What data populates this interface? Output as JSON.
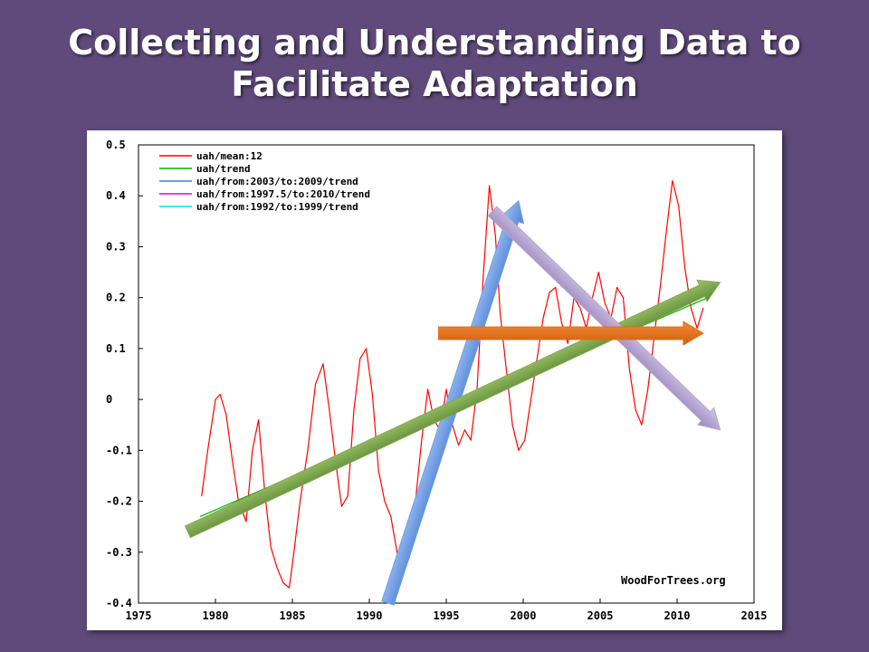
{
  "title": {
    "line1": "Collecting and Understanding Data to",
    "line2": "Facilitate Adaptation"
  },
  "chart_data": {
    "type": "line",
    "title": "",
    "xlabel": "",
    "ylabel": "",
    "xlim": [
      1975,
      2015
    ],
    "ylim": [
      -0.4,
      0.5
    ],
    "x_ticks": [
      "1975",
      "1980",
      "1985",
      "1990",
      "1995",
      "2000",
      "2005",
      "2010",
      "2015"
    ],
    "y_ticks": [
      "0.5",
      "0.4",
      "0.3",
      "0.2",
      "0.1",
      "0",
      "-0.1",
      "-0.2",
      "-0.3",
      "-0.4"
    ],
    "grid": false,
    "legend_position": "top-left",
    "watermark": "WoodForTrees.org",
    "series": [
      {
        "name": "uah/mean:12",
        "color": "#ff0000",
        "x": [
          1979.1,
          1979.5,
          1980.0,
          1980.3,
          1980.7,
          1981.1,
          1981.5,
          1982.0,
          1982.4,
          1982.8,
          1983.2,
          1983.6,
          1984.0,
          1984.4,
          1984.8,
          1985.1,
          1985.5,
          1986.0,
          1986.5,
          1987.0,
          1987.4,
          1987.8,
          1988.2,
          1988.6,
          1989.0,
          1989.4,
          1989.8,
          1990.2,
          1990.6,
          1991.0,
          1991.4,
          1991.8,
          1992.2,
          1992.6,
          1993.0,
          1993.4,
          1993.8,
          1994.2,
          1994.6,
          1995.0,
          1995.4,
          1995.8,
          1996.2,
          1996.6,
          1997.0,
          1997.4,
          1997.8,
          1998.2,
          1998.5,
          1998.9,
          1999.3,
          1999.7,
          2000.1,
          2000.5,
          2000.9,
          2001.3,
          2001.7,
          2002.1,
          2002.5,
          2002.9,
          2003.3,
          2003.7,
          2004.1,
          2004.5,
          2004.9,
          2005.3,
          2005.7,
          2006.1,
          2006.5,
          2006.9,
          2007.3,
          2007.7,
          2008.1,
          2008.5,
          2008.9,
          2009.3,
          2009.7,
          2010.1,
          2010.5,
          2010.9,
          2011.3,
          2011.7
        ],
        "y": [
          -0.19,
          -0.1,
          0.0,
          0.01,
          -0.03,
          -0.12,
          -0.2,
          -0.24,
          -0.1,
          -0.04,
          -0.18,
          -0.29,
          -0.33,
          -0.36,
          -0.37,
          -0.3,
          -0.2,
          -0.1,
          0.03,
          0.07,
          -0.02,
          -0.12,
          -0.21,
          -0.19,
          -0.02,
          0.08,
          0.1,
          0.01,
          -0.14,
          -0.2,
          -0.23,
          -0.3,
          -0.34,
          -0.31,
          -0.2,
          -0.08,
          0.02,
          -0.04,
          -0.06,
          0.02,
          -0.05,
          -0.09,
          -0.06,
          -0.08,
          0.02,
          0.24,
          0.42,
          0.32,
          0.17,
          0.06,
          -0.05,
          -0.1,
          -0.08,
          0.0,
          0.08,
          0.16,
          0.21,
          0.22,
          0.15,
          0.11,
          0.2,
          0.18,
          0.14,
          0.2,
          0.25,
          0.19,
          0.16,
          0.22,
          0.2,
          0.06,
          -0.02,
          -0.05,
          0.02,
          0.12,
          0.22,
          0.33,
          0.43,
          0.38,
          0.26,
          0.18,
          0.14,
          0.18
        ]
      },
      {
        "name": "uah/trend",
        "color": "#00b000",
        "x": [
          1979.0,
          2012.0
        ],
        "y": [
          -0.23,
          0.2
        ]
      },
      {
        "name": "uah/from:2003/to:2009/trend",
        "color": "#3a7ee0",
        "x": [],
        "y": []
      },
      {
        "name": "uah/from:1997.5/to:2010/trend",
        "color": "#e000e0",
        "x": [],
        "y": []
      },
      {
        "name": "uah/from:1992/to:1999/trend",
        "color": "#00e0e0",
        "x": [],
        "y": []
      }
    ]
  },
  "overlay_arrows": [
    {
      "name": "blue-arrow",
      "color": "#6e9be0",
      "from": [
        1991.2,
        -0.4
      ],
      "to": [
        1999.7,
        0.39
      ]
    },
    {
      "name": "green-arrow",
      "color": "#7fa84f",
      "from": [
        1978.2,
        -0.26
      ],
      "to": [
        2012.8,
        0.23
      ]
    },
    {
      "name": "purple-arrow",
      "color": "#b4a3cf",
      "from": [
        1998.0,
        0.37
      ],
      "to": [
        2012.8,
        -0.06
      ]
    },
    {
      "name": "orange-arrow",
      "color": "#e2690f",
      "from": [
        1994.5,
        0.13
      ],
      "to": [
        2011.7,
        0.13
      ]
    }
  ]
}
